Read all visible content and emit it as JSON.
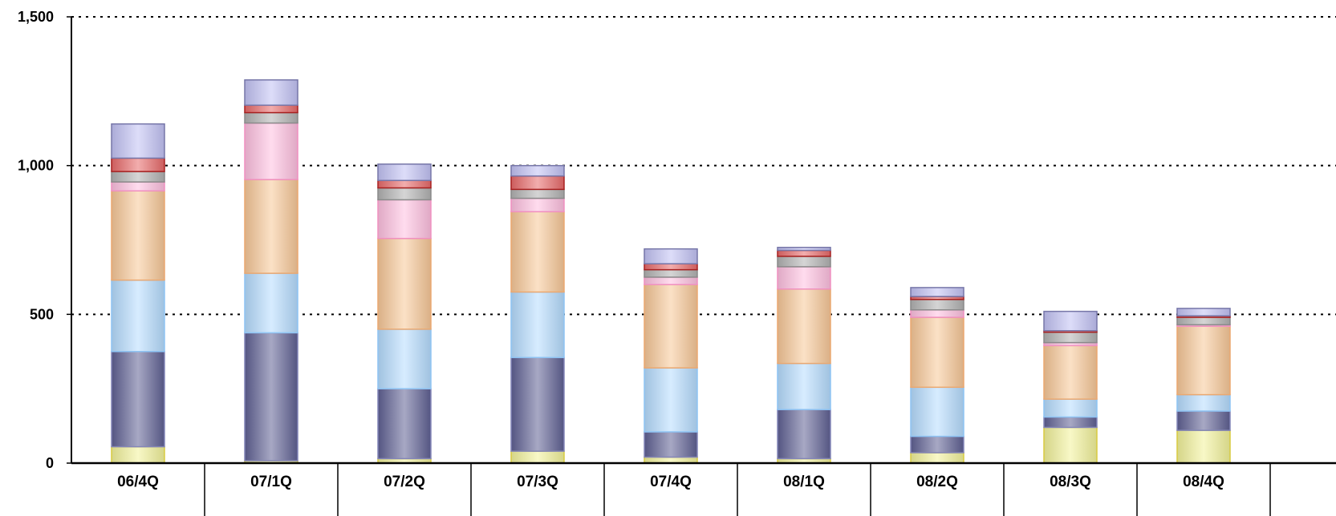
{
  "chart_data": {
    "type": "bar",
    "stacked": true,
    "title": "",
    "xlabel": "",
    "ylabel": "",
    "ylim": [
      0,
      1500
    ],
    "yticks": [
      0,
      500,
      1000,
      1500
    ],
    "ytick_labels": [
      "0",
      "500",
      "1,000",
      "1,500"
    ],
    "grid": "dotted horizontal",
    "legend": "none",
    "categories": [
      "06/4Q",
      "07/1Q",
      "07/2Q",
      "07/3Q",
      "07/4Q",
      "08/1Q",
      "08/2Q",
      "08/3Q",
      "08/4Q"
    ],
    "series": [
      {
        "color": "#f2f29a",
        "edge": "#d8cc40",
        "values": [
          55,
          8,
          15,
          40,
          20,
          15,
          35,
          120,
          110
        ]
      },
      {
        "color": "#5f6194",
        "edge": "#8486b8",
        "values": [
          320,
          430,
          235,
          315,
          85,
          165,
          55,
          35,
          65
        ]
      },
      {
        "color": "#b6dcff",
        "edge": "#8ec4f4",
        "values": [
          240,
          200,
          200,
          220,
          215,
          155,
          165,
          60,
          55
        ]
      },
      {
        "color": "#f8c898",
        "edge": "#eba870",
        "values": [
          300,
          315,
          305,
          270,
          280,
          250,
          235,
          180,
          230
        ]
      },
      {
        "color": "#ffc0e0",
        "edge": "#f090c0",
        "values": [
          30,
          190,
          130,
          45,
          25,
          75,
          25,
          10,
          5
        ]
      },
      {
        "color": "#b2b2b2",
        "edge": "#8a8a8a",
        "values": [
          35,
          35,
          40,
          30,
          25,
          35,
          35,
          35,
          25
        ]
      },
      {
        "color": "#e86a6a",
        "edge": "#a82020",
        "values": [
          45,
          25,
          25,
          45,
          20,
          20,
          10,
          5,
          5
        ]
      },
      {
        "color": "#c2c2f4",
        "edge": "#7676a8",
        "values": [
          115,
          85,
          55,
          35,
          50,
          10,
          30,
          65,
          25
        ]
      }
    ]
  }
}
